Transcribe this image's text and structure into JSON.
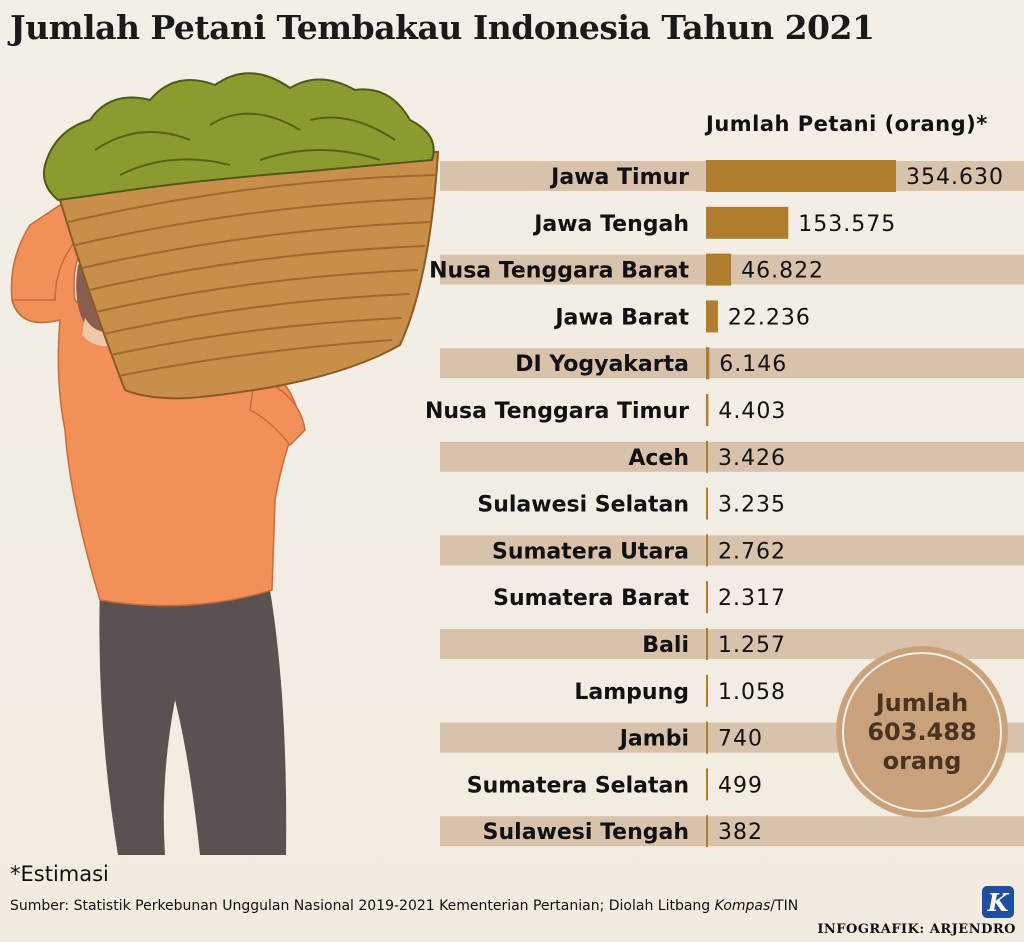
{
  "title": "Jumlah Petani Tembakau Indonesia Tahun 2021",
  "header": "Jumlah Petani (orang)*",
  "total": {
    "line1": "Jumlah",
    "line2": "603.488",
    "line3": "orang"
  },
  "note": "*Estimasi",
  "source_prefix": "Sumber: Statistik Perkebunan Unggulan Nasional 2019-2021 Kementerian Pertanian; Diolah Litbang ",
  "source_italic": "Kompas",
  "source_suffix": "/TIN",
  "credit": "INFOGRAFIK: ARJENDRO",
  "logo_letter": "K",
  "colors": {
    "bar": "#b07d2c",
    "band": "#d9c2ab",
    "background": "#f4efe6",
    "badge": "#c9a27b"
  },
  "chart_data": {
    "type": "bar",
    "orientation": "horizontal",
    "title": "Jumlah Petani Tembakau Indonesia Tahun 2021",
    "value_label": "Jumlah Petani (orang)*",
    "categories": [
      "Jawa Timur",
      "Jawa Tengah",
      "Nusa Tenggara Barat",
      "Jawa Barat",
      "DI Yogyakarta",
      "Nusa Tenggara Timur",
      "Aceh",
      "Sulawesi Selatan",
      "Sumatera Utara",
      "Sumatera Barat",
      "Bali",
      "Lampung",
      "Jambi",
      "Sumatera Selatan",
      "Sulawesi Tengah"
    ],
    "values": [
      354630,
      153575,
      46822,
      22236,
      6146,
      4403,
      3426,
      3235,
      2762,
      2317,
      1257,
      1058,
      740,
      499,
      382
    ],
    "value_labels": [
      "354.630",
      "153.575",
      "46.822",
      "22.236",
      "6.146",
      "4.403",
      "3.426",
      "3.235",
      "2.762",
      "2.317",
      "1.257",
      "1.058",
      "740",
      "499",
      "382"
    ],
    "xlim": [
      0,
      354630
    ],
    "grid": false,
    "legend": "none"
  }
}
